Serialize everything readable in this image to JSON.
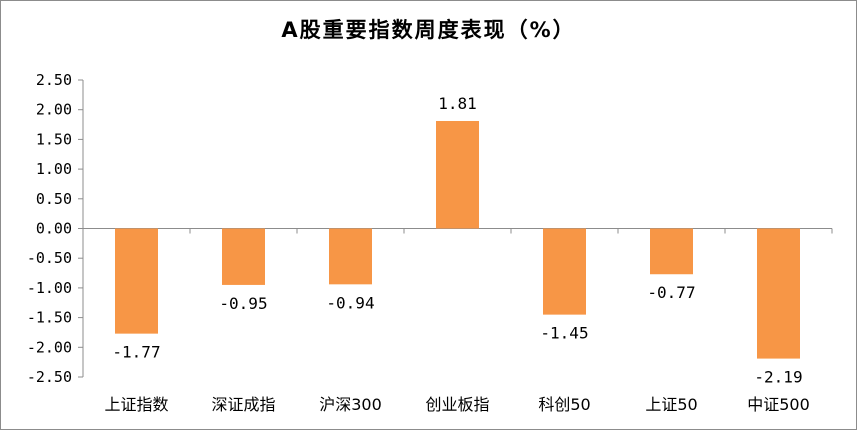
{
  "chart_data": {
    "type": "bar",
    "title": "A股重要指数周度表现（%）",
    "categories": [
      "上证指数",
      "深证成指",
      "沪深300",
      "创业板指",
      "科创50",
      "上证50",
      "中证500"
    ],
    "values": [
      -1.77,
      -0.95,
      -0.94,
      1.81,
      -1.45,
      -0.77,
      -2.19
    ],
    "value_labels": [
      "-1.77",
      "-0.95",
      "-0.94",
      "1.81",
      "-1.45",
      "-0.77",
      "-2.19"
    ],
    "ylim": [
      -2.5,
      2.5
    ],
    "yticks": [
      "2.50",
      "2.00",
      "1.50",
      "1.00",
      "0.50",
      "0.00",
      "-0.50",
      "-1.00",
      "-1.50",
      "-2.00",
      "-2.50"
    ],
    "grid": false,
    "bar_color": "#F79646",
    "legend": "none"
  }
}
